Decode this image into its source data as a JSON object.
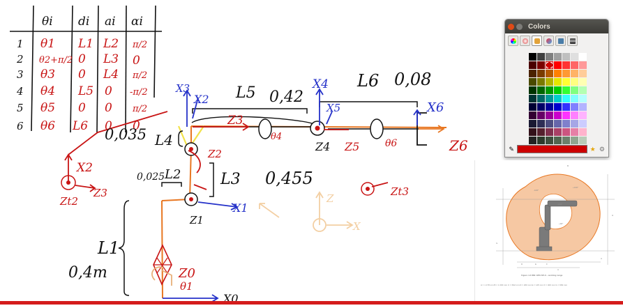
{
  "whiteboard": {
    "table": {
      "headers": [
        "θi",
        "di",
        "ai",
        "αi"
      ],
      "rows": [
        {
          "i": "1",
          "theta": "θ1",
          "d": "L1",
          "a": "L2",
          "alpha": "π/2"
        },
        {
          "i": "2",
          "theta": "θ2+π/2",
          "d": "0",
          "a": "L3",
          "alpha": "0"
        },
        {
          "i": "3",
          "theta": "θ3",
          "d": "0",
          "a": "L4",
          "alpha": "π/2"
        },
        {
          "i": "4",
          "theta": "θ4",
          "d": "L5",
          "a": "0",
          "alpha": "-π/2"
        },
        {
          "i": "5",
          "theta": "θ5",
          "d": "0",
          "a": "0",
          "alpha": "π/2"
        },
        {
          "i": "6",
          "theta": "θ6",
          "d": "L6",
          "a": "0",
          "alpha": "0"
        }
      ]
    },
    "labels": {
      "l1": "L1",
      "l1_value": "0,4m",
      "l2": "L2",
      "l2_value": "0,025",
      "l3": "L3",
      "l3_value": "0,455",
      "l4": "L4",
      "l4_value": "0,035",
      "l5": "L5",
      "l5_value": "0,42",
      "l6": "L6",
      "l6_value": "0,08",
      "x0": "X0",
      "z0": "Z0",
      "theta1": "θ1",
      "x1": "X1",
      "z1": "Z1",
      "x2": "X2",
      "z2": "Z2",
      "x3": "X3",
      "z3": "Z3",
      "x4": "X4",
      "z4": "Z4",
      "theta4": "θ4",
      "x5": "X5",
      "z5": "Z5",
      "x6": "X6",
      "z6": "Z6",
      "theta6": "θ6",
      "x2_side": "X2",
      "z3_side": "Z3",
      "zt2": "Zt2",
      "zt3": "Zt3",
      "ghost_z": "Z",
      "ghost_x": "X"
    }
  },
  "colors_dialog": {
    "title": "Colors",
    "tabs": [
      "color-wheel",
      "color-sliders",
      "color-palettes",
      "image-colors",
      "crayons",
      "pencils"
    ],
    "active_tab": 2,
    "selected_color": "#cc0000",
    "palette": [
      "#000000",
      "#3f3f3f",
      "#7f7f7f",
      "#9f9f9f",
      "#bfbfbf",
      "#dfdfdf",
      "#ffffff",
      "#4a0000",
      "#7a0000",
      "#cc0000",
      "#ff0000",
      "#ff3333",
      "#ff6666",
      "#ff9999",
      "#4a2200",
      "#7a3c00",
      "#b35900",
      "#ff8000",
      "#ff9933",
      "#ffb366",
      "#ffcc99",
      "#4a4a00",
      "#7a7a00",
      "#b3b300",
      "#e6e600",
      "#ffff33",
      "#ffff80",
      "#ffffb3",
      "#003300",
      "#006600",
      "#009900",
      "#00cc00",
      "#33ff33",
      "#80ff80",
      "#b3ffb3",
      "#003333",
      "#006666",
      "#009999",
      "#00cccc",
      "#33ffff",
      "#80ffff",
      "#b3ffff",
      "#000033",
      "#000066",
      "#000099",
      "#0000cc",
      "#3333ff",
      "#8080ff",
      "#b3b3ff",
      "#330033",
      "#660066",
      "#990099",
      "#cc00cc",
      "#ff33ff",
      "#ff80ff",
      "#ffb3ff",
      "#1a1a33",
      "#2e2e55",
      "#4d4d80",
      "#6666aa",
      "#8080cc",
      "#a6a6e6",
      "#ccccff",
      "#33111a",
      "#55202e",
      "#80304d",
      "#aa4066",
      "#cc5580",
      "#e680a6",
      "#ffb3cc",
      "#222222",
      "#2b3a2b",
      "#3d4f3d",
      "#50664f",
      "#6b806b",
      "#8fa68f",
      "#b8ccb8",
      "#12263a",
      "#1e3d5c",
      "#2e5a85",
      "#4077ad",
      "#5f97cc",
      "#8fb8e0",
      "#c0d8f0"
    ]
  },
  "document_thumb": {
    "caption": "Figure 4-3 IRB 1200-5/0.9 – working range",
    "footnote": "A = 1 178 mm  B = 1 030 mm  C = 692 mm  D = 200 mm  E = 145 mm  F = 400 mm  G = 682 mm",
    "labels": [
      "A",
      "B",
      "C",
      "D",
      "E",
      "F",
      "G",
      "H"
    ],
    "angle_labels": [
      "+130°",
      "-100°",
      "-200°",
      "+90°"
    ]
  }
}
